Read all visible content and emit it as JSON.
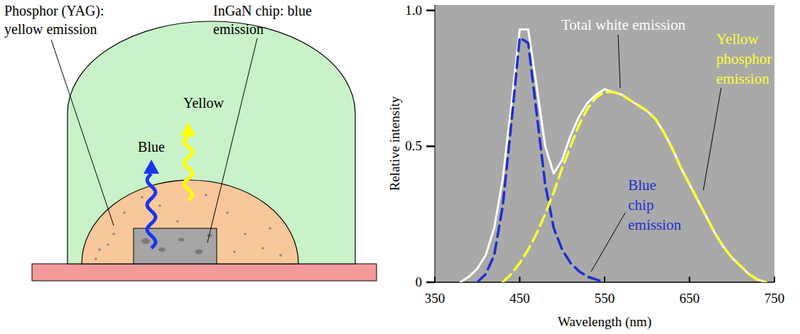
{
  "diagram": {
    "phosphor_label": [
      "Phosphor (YAG):",
      "yellow emission"
    ],
    "chip_label": [
      "InGaN chip: blue",
      "emission"
    ],
    "yellow_arrow_label": "Yellow",
    "blue_arrow_label": "Blue"
  },
  "chart_data": {
    "type": "line",
    "x_label": "Wavelength (nm)",
    "y_label": "Relative intensity",
    "x": [
      380,
      390,
      400,
      410,
      420,
      430,
      440,
      450,
      460,
      470,
      480,
      490,
      500,
      510,
      520,
      530,
      540,
      550,
      560,
      570,
      580,
      590,
      600,
      610,
      620,
      630,
      640,
      650,
      660,
      670,
      680,
      690,
      700,
      710,
      720,
      730,
      740
    ],
    "xlim": [
      350,
      750
    ],
    "xticks": [
      350,
      450,
      550,
      650,
      750
    ],
    "ylim": [
      0,
      1.02
    ],
    "yticks": [
      0,
      0.5,
      {
        "value": 1,
        "label": "1.0"
      }
    ],
    "series": [
      {
        "name": "Total white emission",
        "color": "#ffffff",
        "line_style": "solid",
        "values": [
          0,
          0.02,
          0.05,
          0.1,
          0.2,
          0.38,
          0.65,
          0.93,
          0.93,
          0.72,
          0.5,
          0.4,
          0.45,
          0.54,
          0.61,
          0.66,
          0.69,
          0.71,
          0.7,
          0.69,
          0.67,
          0.65,
          0.63,
          0.6,
          0.55,
          0.49,
          0.42,
          0.36,
          0.3,
          0.24,
          0.18,
          0.13,
          0.09,
          0.06,
          0.03,
          0.01,
          0
        ]
      },
      {
        "name": "Blue chip emission",
        "color": "#1f2fd0",
        "line_style": "dashed",
        "values": [
          null,
          null,
          0,
          0.03,
          0.1,
          0.28,
          0.58,
          0.9,
          0.88,
          0.62,
          0.36,
          0.2,
          0.12,
          0.07,
          0.04,
          0.02,
          0.01,
          0,
          null,
          null,
          null,
          null,
          null,
          null,
          null,
          null,
          null,
          null,
          null,
          null,
          null,
          null,
          null,
          null,
          null,
          null,
          null
        ]
      },
      {
        "name": "Yellow phosphor emission",
        "color": "#ffff33",
        "line_style": "dashed",
        "values": [
          null,
          null,
          null,
          null,
          null,
          0,
          0.03,
          0.07,
          0.12,
          0.18,
          0.25,
          0.33,
          0.42,
          0.5,
          0.58,
          0.64,
          0.68,
          0.7,
          0.7,
          0.69,
          0.67,
          0.65,
          0.63,
          0.6,
          0.55,
          0.49,
          0.42,
          0.36,
          0.3,
          0.24,
          0.18,
          0.13,
          0.09,
          0.06,
          0.03,
          0.01,
          0
        ]
      }
    ]
  }
}
